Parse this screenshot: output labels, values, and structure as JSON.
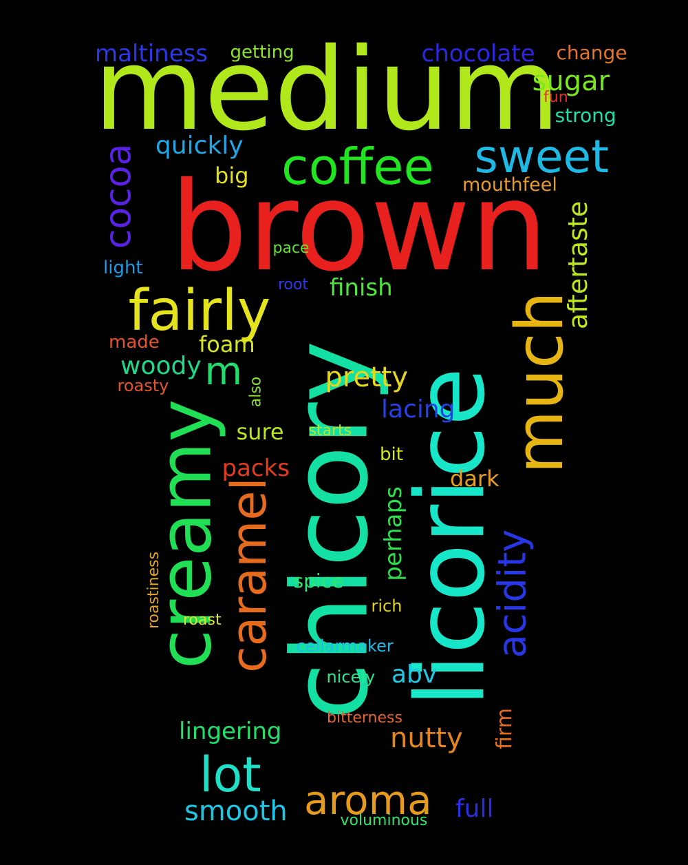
{
  "words": [
    {
      "id": "brown",
      "text": "brown",
      "color": "#e8211e"
    },
    {
      "id": "medium",
      "text": "medium",
      "color": "#b1e81c"
    },
    {
      "id": "chicory",
      "text": "chicory",
      "color": "#14e0a3"
    },
    {
      "id": "licorice",
      "text": "licorice",
      "color": "#18e6c9"
    },
    {
      "id": "creamy",
      "text": "creamy",
      "color": "#20df55"
    },
    {
      "id": "much",
      "text": "much",
      "color": "#e6b514"
    },
    {
      "id": "fairly",
      "text": "fairly",
      "color": "#e4e31d"
    },
    {
      "id": "coffee",
      "text": "coffee",
      "color": "#22e522"
    },
    {
      "id": "sweet",
      "text": "sweet",
      "color": "#1fb9e6"
    },
    {
      "id": "caramel",
      "text": "caramel",
      "color": "#e66b1d"
    },
    {
      "id": "lot",
      "text": "lot",
      "color": "#1ee0c8"
    },
    {
      "id": "aroma",
      "text": "aroma",
      "color": "#e69a1e"
    },
    {
      "id": "acidity",
      "text": "acidity",
      "color": "#2837e6"
    },
    {
      "id": "cocoa",
      "text": "cocoa",
      "color": "#5a22e6"
    },
    {
      "id": "m",
      "text": "m",
      "color": "#20de6e"
    },
    {
      "id": "aftertaste",
      "text": "aftertaste",
      "color": "#bde61f"
    },
    {
      "id": "pretty",
      "text": "pretty",
      "color": "#e6d71d"
    },
    {
      "id": "nutty",
      "text": "nutty",
      "color": "#e6851d"
    },
    {
      "id": "smooth",
      "text": "smooth",
      "color": "#1fc7e6"
    },
    {
      "id": "sugar",
      "text": "sugar",
      "color": "#7ae61e"
    },
    {
      "id": "chocolate",
      "text": "chocolate",
      "color": "#2c27e6"
    },
    {
      "id": "maltiness",
      "text": "maltiness",
      "color": "#2c37e6"
    },
    {
      "id": "quickly",
      "text": "quickly",
      "color": "#1ea6e6"
    },
    {
      "id": "woody",
      "text": "woody",
      "color": "#1ed98c"
    },
    {
      "id": "lacing",
      "text": "lacing",
      "color": "#2740e6"
    },
    {
      "id": "perhaps",
      "text": "perhaps",
      "color": "#2ee04e"
    },
    {
      "id": "lingering",
      "text": "lingering",
      "color": "#20e06a"
    },
    {
      "id": "finish",
      "text": "finish",
      "color": "#4fe63a"
    },
    {
      "id": "foam",
      "text": "foam",
      "color": "#d7e61d"
    },
    {
      "id": "dark",
      "text": "dark",
      "color": "#e6a01d"
    },
    {
      "id": "packs",
      "text": "packs",
      "color": "#e63a1d"
    },
    {
      "id": "abv",
      "text": "abv",
      "color": "#1ec9e6"
    },
    {
      "id": "full",
      "text": "full",
      "color": "#2a2ee6"
    },
    {
      "id": "sure",
      "text": "sure",
      "color": "#b9e61f"
    },
    {
      "id": "big",
      "text": "big",
      "color": "#e6e01d"
    },
    {
      "id": "firm",
      "text": "firm",
      "color": "#e66e1d"
    },
    {
      "id": "mouthfeel",
      "text": "mouthfeel",
      "color": "#e69a2a"
    },
    {
      "id": "change",
      "text": "change",
      "color": "#e6752a"
    },
    {
      "id": "strong",
      "text": "strong",
      "color": "#1ee0aa"
    },
    {
      "id": "getting",
      "text": "getting",
      "color": "#8ae62a"
    },
    {
      "id": "spice",
      "text": "spice",
      "color": "#2ee66e"
    },
    {
      "id": "made",
      "text": "made",
      "color": "#e6522a"
    },
    {
      "id": "light",
      "text": "light",
      "color": "#1f9be6"
    },
    {
      "id": "bit",
      "text": "bit",
      "color": "#d6e61d"
    },
    {
      "id": "cellarmaker",
      "text": "cellarmaker",
      "color": "#1ebde6"
    },
    {
      "id": "roasty",
      "text": "roasty",
      "color": "#e6552a"
    },
    {
      "id": "rich",
      "text": "rich",
      "color": "#e6d21d"
    },
    {
      "id": "nicely",
      "text": "nicely",
      "color": "#2ee690"
    },
    {
      "id": "bitterness",
      "text": "bitterness",
      "color": "#e6642a"
    },
    {
      "id": "voluminous",
      "text": "voluminous",
      "color": "#2ee66a"
    },
    {
      "id": "roastiness",
      "text": "roastiness",
      "color": "#e6a52a"
    },
    {
      "id": "roast",
      "text": "roast",
      "color": "#d6e62a"
    },
    {
      "id": "also",
      "text": "also",
      "color": "#8ae62a"
    },
    {
      "id": "starts",
      "text": "starts",
      "color": "#b9e62a"
    },
    {
      "id": "pace",
      "text": "pace",
      "color": "#5ae62a"
    },
    {
      "id": "root",
      "text": "root",
      "color": "#2a3ae6"
    },
    {
      "id": "fun",
      "text": "fun",
      "color": "#e6302a"
    }
  ]
}
